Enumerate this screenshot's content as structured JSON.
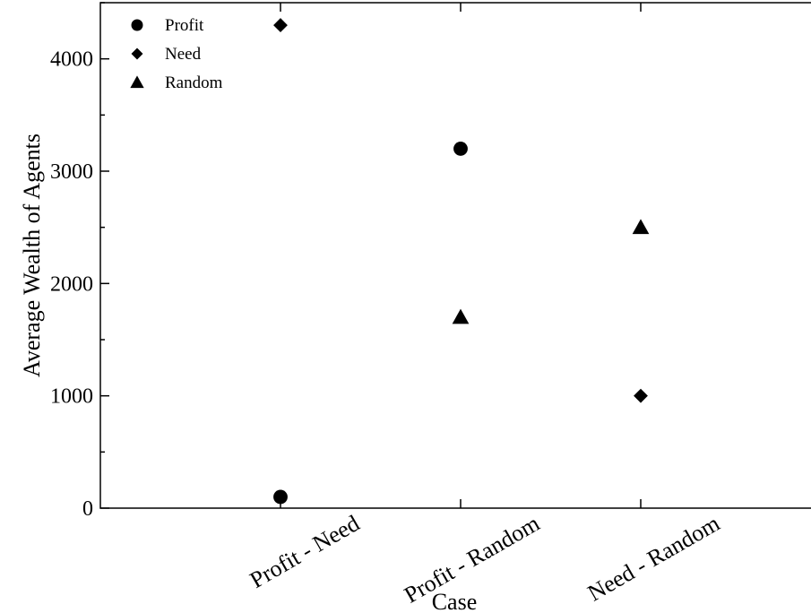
{
  "chart_data": {
    "type": "scatter",
    "title": "",
    "xlabel": "Case",
    "ylabel": "Average Wealth of Agents",
    "categories": [
      "Profit - Need",
      "Profit - Random",
      "Need - Random"
    ],
    "ylim": [
      0,
      4500
    ],
    "y_major_ticks": [
      0,
      1000,
      2000,
      3000,
      4000
    ],
    "y_tick_labels": [
      "0",
      "1000",
      "2000",
      "3000",
      "4000"
    ],
    "y_minor_ticks": [
      500,
      1500,
      2500,
      3500,
      4500
    ],
    "grid": false,
    "legend_position": "top-left",
    "series": [
      {
        "name": "Profit",
        "marker": "circle",
        "color": "#000000",
        "values": [
          100,
          3200,
          null
        ]
      },
      {
        "name": "Need",
        "marker": "diamond",
        "color": "#000000",
        "values": [
          4300,
          null,
          1000
        ]
      },
      {
        "name": "Random",
        "marker": "triangle",
        "color": "#000000",
        "values": [
          null,
          1700,
          2500
        ]
      }
    ]
  }
}
